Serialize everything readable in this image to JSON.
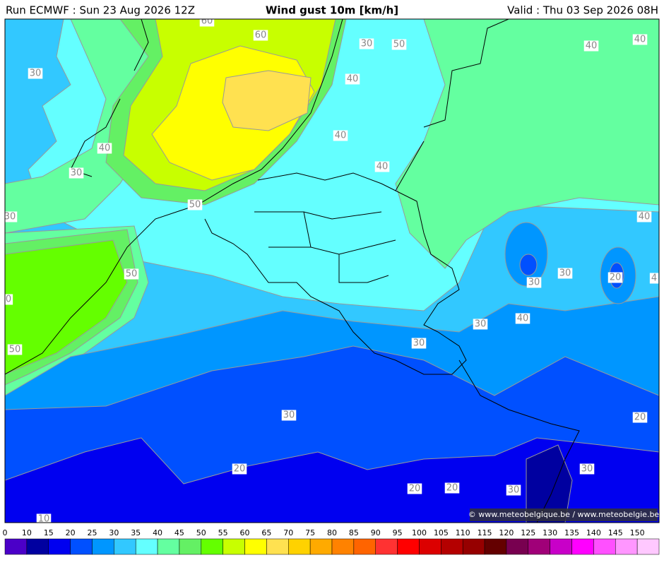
{
  "header": {
    "run": "Run ECMWF : Sun 23 Aug 2026 12Z",
    "title": "Wind gust 10m [km/h]",
    "valid": "Valid : Thu 03 Sep 2026 08H"
  },
  "map": {
    "contour_labels": [
      "60",
      "60",
      "30",
      "50",
      "40",
      "40",
      "30",
      "40",
      "40",
      "40",
      "30",
      "40",
      "50",
      "30",
      "40",
      "50",
      "30",
      "20",
      "30",
      "4",
      "0",
      "40",
      "30",
      "30",
      "50",
      "30",
      "20",
      "20",
      "30",
      "20",
      "20",
      "30",
      "10"
    ],
    "copyright": "© www.meteobelgique.be / www.meteobelgie.be"
  },
  "legend": {
    "labels": [
      "0",
      "10",
      "15",
      "20",
      "25",
      "30",
      "35",
      "40",
      "45",
      "50",
      "55",
      "60",
      "65",
      "70",
      "75",
      "80",
      "85",
      "90",
      "95",
      "100",
      "105",
      "110",
      "115",
      "120",
      "125",
      "130",
      "135",
      "140",
      "145",
      "150"
    ],
    "colors": [
      "#4b00c8",
      "#0000a0",
      "#0000f0",
      "#0050ff",
      "#0096ff",
      "#32c8ff",
      "#64ffff",
      "#64ffa0",
      "#64f064",
      "#64ff00",
      "#c8ff00",
      "#ffff00",
      "#ffe150",
      "#ffd200",
      "#ffaa00",
      "#ff8200",
      "#ff6400",
      "#ff3232",
      "#ff0000",
      "#dc0000",
      "#b40000",
      "#960000",
      "#640000",
      "#780050",
      "#a00078",
      "#c800c8",
      "#ff00ff",
      "#ff50ff",
      "#ff96ff",
      "#ffc8ff"
    ]
  }
}
